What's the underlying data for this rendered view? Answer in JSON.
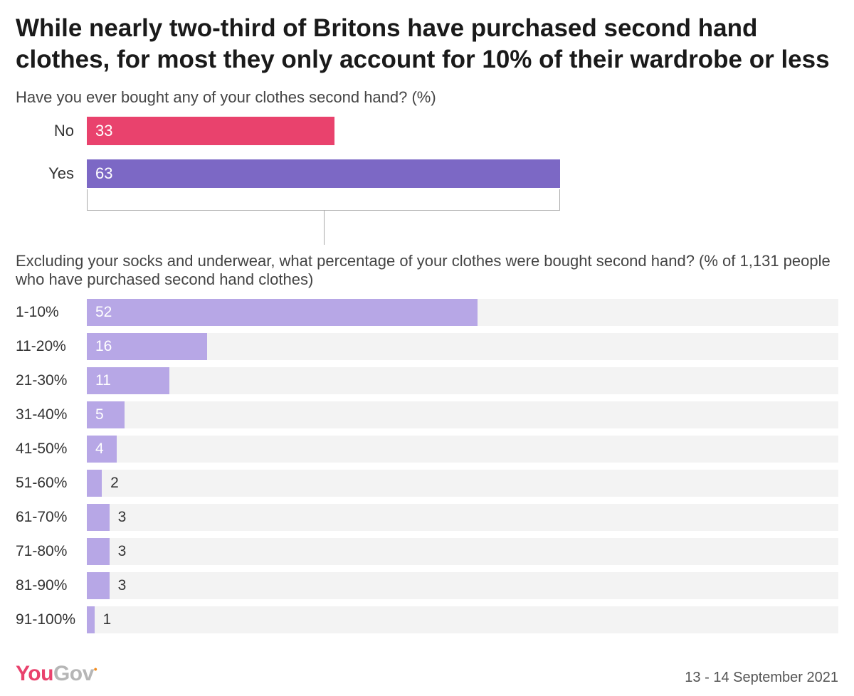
{
  "title": "While nearly two-third of Britons have purchased second hand clothes, for most they only account for 10% of their wardrobe or less",
  "chart1": {
    "type": "bar",
    "question": "Have you ever bought any of your clothes second hand? (%)",
    "max": 100,
    "rows": [
      {
        "label": "No",
        "value": 33,
        "color": "#e9426d"
      },
      {
        "label": "Yes",
        "value": 63,
        "color": "#7c68c5"
      }
    ]
  },
  "chart2": {
    "type": "bar",
    "question": "Excluding your socks and underwear, what percentage of your clothes were bought second hand? (% of 1,131 people who have purchased second hand clothes)",
    "max": 100,
    "bar_color": "#b7a7e6",
    "track_color": "#f3f3f3",
    "label_inside_threshold": 4,
    "rows": [
      {
        "label": "1-10%",
        "value": 52
      },
      {
        "label": "11-20%",
        "value": 16
      },
      {
        "label": "21-30%",
        "value": 11
      },
      {
        "label": "31-40%",
        "value": 5
      },
      {
        "label": "41-50%",
        "value": 4
      },
      {
        "label": "51-60%",
        "value": 2
      },
      {
        "label": "61-70%",
        "value": 3
      },
      {
        "label": "71-80%",
        "value": 3
      },
      {
        "label": "81-90%",
        "value": 3
      },
      {
        "label": "91-100%",
        "value": 1
      }
    ]
  },
  "footer": {
    "logo_you": "You",
    "logo_gov": "Gov",
    "date": "13 - 14 September 2021"
  },
  "colors": {
    "text": "#333333",
    "title": "#1a1a1a",
    "connector": "#aaaaaa",
    "background": "#ffffff"
  }
}
